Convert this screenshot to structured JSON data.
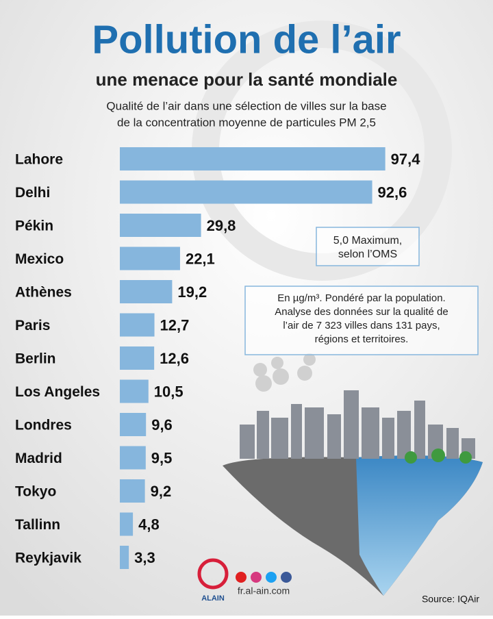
{
  "chart_data": {
    "type": "hbar",
    "title": "Pollution de l’air",
    "subtitle": "une menace pour la santé mondiale",
    "description": [
      "Qualité de l’air dans une sélection de villes sur la base",
      "de la concentration moyenne de particules PM 2,5"
    ],
    "categories": [
      "Lahore",
      "Delhi",
      "Pékin",
      "Mexico",
      "Athènes",
      "Paris",
      "Berlin",
      "Los Angeles",
      "Londres",
      "Madrid",
      "Tokyo",
      "Tallinn",
      "Reykjavik"
    ],
    "values": [
      97.4,
      92.6,
      29.8,
      22.1,
      19.2,
      12.7,
      12.6,
      10.5,
      9.6,
      9.5,
      9.2,
      4.8,
      3.3
    ],
    "value_labels": [
      "97,4",
      "92,6",
      "29,8",
      "22,1",
      "19,2",
      "12,7",
      "12,6",
      "10,5",
      "9,6",
      "9,5",
      "9,2",
      "4,8",
      "3,3"
    ],
    "color": "#86b6dd",
    "xlim": [
      0,
      100
    ],
    "notes": [
      [
        "5,0 Maximum,",
        "selon l’OMS"
      ],
      [
        "En µg/m³. Pondéré par la population.",
        "Analyse des données sur la qualité de",
        "l’air de 7 323 villes dans 131 pays,",
        "régions et territoires."
      ]
    ],
    "logo": "ALAIN",
    "website": "fr.al-ain.com",
    "source": "Source: IQAir"
  }
}
